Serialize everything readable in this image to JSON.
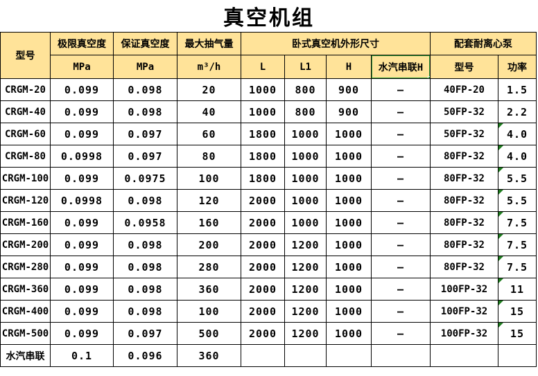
{
  "title": "真空机组",
  "colors": {
    "header_fill": "#FFE399",
    "selection_green": "#3BA33B",
    "error_triangle_green": "#1F7D1F",
    "grid_border": "#000000"
  },
  "table": {
    "header": {
      "model": "型号",
      "ultimate_vacuum": "极限真空度",
      "guaranteed_vacuum": "保证真空度",
      "max_capacity": "最大抽气量",
      "unit_mpa_1": "MPa",
      "unit_mpa_2": "MPa",
      "unit_m3h": "m³/h",
      "dimensions_group": "卧式真空机外形尺寸",
      "l": "L",
      "l1": "L1",
      "h": "H",
      "steam_series_h": "水汽串联H",
      "pump_group": "配套耐离心泵",
      "pump_model": "型号",
      "power": "功率"
    },
    "selected_header_cell": "水汽串联H",
    "rows": [
      {
        "model": "CRGM-20",
        "ultimate": "0.099",
        "guaranteed": "0.098",
        "capacity": "20",
        "l": "1000",
        "l1": "800",
        "h": "900",
        "steam_h": "–",
        "pump_model": "40FP-20",
        "power": "1.5",
        "power_error_marker": false
      },
      {
        "model": "CRGM-40",
        "ultimate": "0.099",
        "guaranteed": "0.098",
        "capacity": "40",
        "l": "1000",
        "l1": "800",
        "h": "900",
        "steam_h": "–",
        "pump_model": "50FP-32",
        "power": "2.2",
        "power_error_marker": false
      },
      {
        "model": "CRGM-60",
        "ultimate": "0.099",
        "guaranteed": "0.097",
        "capacity": "60",
        "l": "1800",
        "l1": "1000",
        "h": "1000",
        "steam_h": "–",
        "pump_model": "50FP-32",
        "power": "4.0",
        "power_error_marker": true
      },
      {
        "model": "CRGM-80",
        "ultimate": "0.0998",
        "guaranteed": "0.097",
        "capacity": "80",
        "l": "1800",
        "l1": "1000",
        "h": "1000",
        "steam_h": "–",
        "pump_model": "80FP-32",
        "power": "4.0",
        "power_error_marker": true
      },
      {
        "model": "CRGM-100",
        "ultimate": "0.099",
        "guaranteed": "0.0975",
        "capacity": "100",
        "l": "1800",
        "l1": "1000",
        "h": "1000",
        "steam_h": "–",
        "pump_model": "80FP-32",
        "power": "5.5",
        "power_error_marker": true
      },
      {
        "model": "CRGM-120",
        "ultimate": "0.0998",
        "guaranteed": "0.098",
        "capacity": "120",
        "l": "2000",
        "l1": "1000",
        "h": "1000",
        "steam_h": "–",
        "pump_model": "80FP-32",
        "power": "5.5",
        "power_error_marker": true
      },
      {
        "model": "CRGM-160",
        "ultimate": "0.099",
        "guaranteed": "0.0958",
        "capacity": "160",
        "l": "2000",
        "l1": "1000",
        "h": "1000",
        "steam_h": "–",
        "pump_model": "80FP-32",
        "power": "7.5",
        "power_error_marker": true
      },
      {
        "model": "CRGM-200",
        "ultimate": "0.099",
        "guaranteed": "0.098",
        "capacity": "200",
        "l": "2000",
        "l1": "1200",
        "h": "1000",
        "steam_h": "–",
        "pump_model": "80FP-32",
        "power": "7.5",
        "power_error_marker": true
      },
      {
        "model": "CRGM-280",
        "ultimate": "0.099",
        "guaranteed": "0.098",
        "capacity": "280",
        "l": "2000",
        "l1": "1200",
        "h": "1000",
        "steam_h": "–",
        "pump_model": "80FP-32",
        "power": "7.5",
        "power_error_marker": true
      },
      {
        "model": "CRGM-360",
        "ultimate": "0.099",
        "guaranteed": "0.098",
        "capacity": "360",
        "l": "2000",
        "l1": "1200",
        "h": "1000",
        "steam_h": "–",
        "pump_model": "100FP-32",
        "power": "11",
        "power_error_marker": true
      },
      {
        "model": "CRGM-400",
        "ultimate": "0.099",
        "guaranteed": "0.098",
        "capacity": "100",
        "l": "2000",
        "l1": "1200",
        "h": "1000",
        "steam_h": "–",
        "pump_model": "100FP-32",
        "power": "15",
        "power_error_marker": true
      },
      {
        "model": "CRGM-500",
        "ultimate": "0.099",
        "guaranteed": "0.097",
        "capacity": "500",
        "l": "2000",
        "l1": "1200",
        "h": "1000",
        "steam_h": "–",
        "pump_model": "100FP-32",
        "power": "15",
        "power_error_marker": true
      },
      {
        "model": "水汽串联",
        "ultimate": "0.1",
        "guaranteed": "0.096",
        "capacity": "360",
        "l": "",
        "l1": "",
        "h": "",
        "steam_h": "",
        "pump_model": "",
        "power": "",
        "power_error_marker": false
      }
    ]
  }
}
